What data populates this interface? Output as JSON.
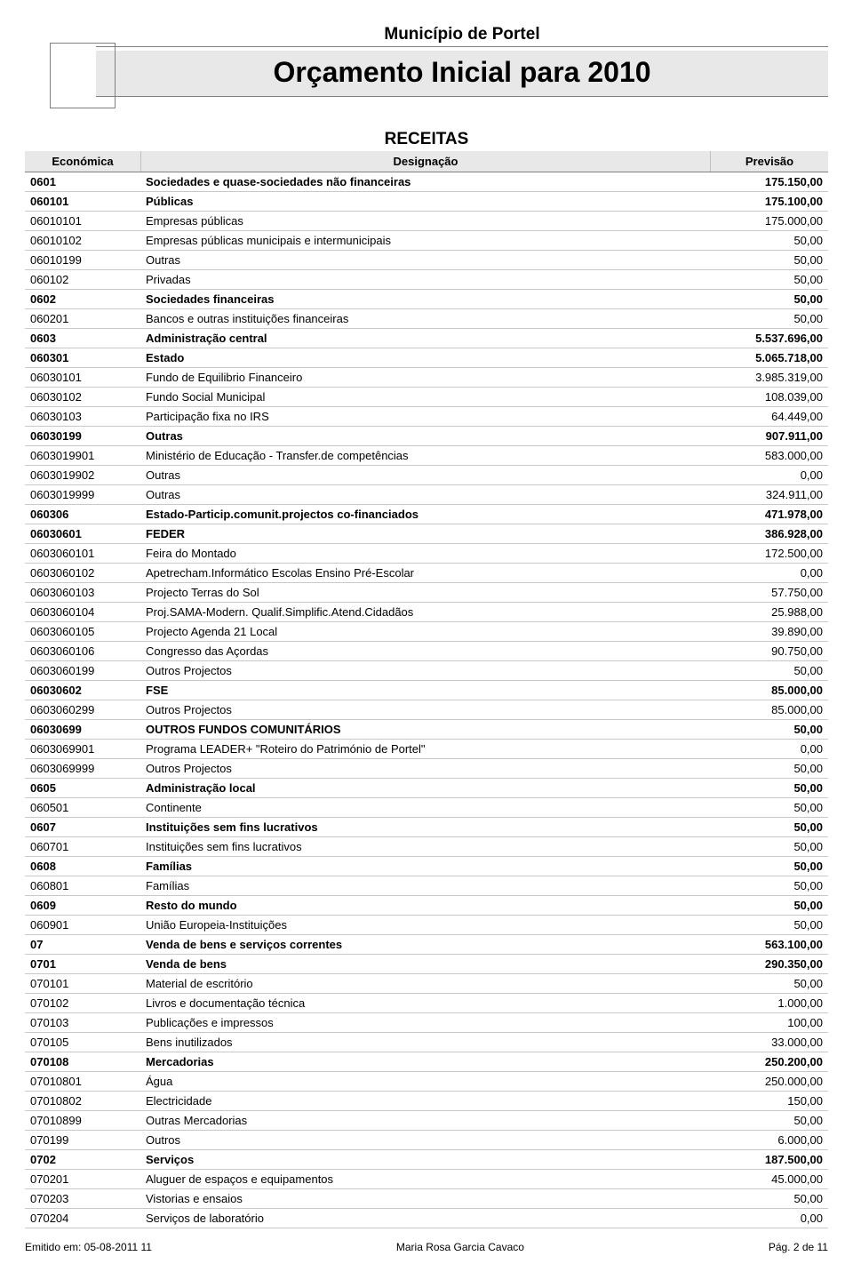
{
  "header": {
    "municipality": "Município de Portel",
    "title": "Orçamento Inicial para 2010",
    "section": "RECEITAS"
  },
  "columns": {
    "economica": "Económica",
    "designacao": "Designação",
    "previsao": "Previsão"
  },
  "style": {
    "header_bg": "#e8e8e8",
    "border_color": "#808080",
    "row_border_color": "#c8c8c8",
    "text_color": "#000000",
    "title_fontsize": 32,
    "section_fontsize": 19,
    "body_fontsize": 13
  },
  "footer": {
    "left": "Emitido em: 05-08-2011 11",
    "center": "Maria Rosa Garcia Cavaco",
    "right": "Pág. 2 de 11"
  },
  "rows": [
    {
      "econ": "0601",
      "desig": "Sociedades e quase-sociedades não financeiras",
      "prev": "175.150,00",
      "bold": true
    },
    {
      "econ": "060101",
      "desig": "Públicas",
      "prev": "175.100,00",
      "bold": true
    },
    {
      "econ": "06010101",
      "desig": "Empresas públicas",
      "prev": "175.000,00",
      "bold": false
    },
    {
      "econ": "06010102",
      "desig": "Empresas públicas municipais e intermunicipais",
      "prev": "50,00",
      "bold": false
    },
    {
      "econ": "06010199",
      "desig": "Outras",
      "prev": "50,00",
      "bold": false
    },
    {
      "econ": "060102",
      "desig": "Privadas",
      "prev": "50,00",
      "bold": false
    },
    {
      "econ": "0602",
      "desig": "Sociedades financeiras",
      "prev": "50,00",
      "bold": true
    },
    {
      "econ": "060201",
      "desig": "Bancos e outras instituições financeiras",
      "prev": "50,00",
      "bold": false
    },
    {
      "econ": "0603",
      "desig": "Administração central",
      "prev": "5.537.696,00",
      "bold": true
    },
    {
      "econ": "060301",
      "desig": "Estado",
      "prev": "5.065.718,00",
      "bold": true
    },
    {
      "econ": "06030101",
      "desig": "Fundo de Equilibrio Financeiro",
      "prev": "3.985.319,00",
      "bold": false
    },
    {
      "econ": "06030102",
      "desig": "Fundo Social Municipal",
      "prev": "108.039,00",
      "bold": false
    },
    {
      "econ": "06030103",
      "desig": "Participação fixa no IRS",
      "prev": "64.449,00",
      "bold": false
    },
    {
      "econ": "06030199",
      "desig": "Outras",
      "prev": "907.911,00",
      "bold": true
    },
    {
      "econ": "0603019901",
      "desig": "Ministério de Educação - Transfer.de competências",
      "prev": "583.000,00",
      "bold": false
    },
    {
      "econ": "0603019902",
      "desig": "Outras",
      "prev": "0,00",
      "bold": false
    },
    {
      "econ": "0603019999",
      "desig": "Outras",
      "prev": "324.911,00",
      "bold": false
    },
    {
      "econ": "060306",
      "desig": "Estado-Particip.comunit.projectos co-financiados",
      "prev": "471.978,00",
      "bold": true
    },
    {
      "econ": "06030601",
      "desig": "FEDER",
      "prev": "386.928,00",
      "bold": true
    },
    {
      "econ": "0603060101",
      "desig": "Feira do Montado",
      "prev": "172.500,00",
      "bold": false
    },
    {
      "econ": "0603060102",
      "desig": "Apetrecham.Informático Escolas Ensino Pré-Escolar",
      "prev": "0,00",
      "bold": false
    },
    {
      "econ": "0603060103",
      "desig": "Projecto Terras do Sol",
      "prev": "57.750,00",
      "bold": false
    },
    {
      "econ": "0603060104",
      "desig": "Proj.SAMA-Modern. Qualif.Simplific.Atend.Cidadãos",
      "prev": "25.988,00",
      "bold": false
    },
    {
      "econ": "0603060105",
      "desig": "Projecto Agenda 21 Local",
      "prev": "39.890,00",
      "bold": false
    },
    {
      "econ": "0603060106",
      "desig": "Congresso das Açordas",
      "prev": "90.750,00",
      "bold": false
    },
    {
      "econ": "0603060199",
      "desig": "Outros Projectos",
      "prev": "50,00",
      "bold": false
    },
    {
      "econ": "06030602",
      "desig": "FSE",
      "prev": "85.000,00",
      "bold": true
    },
    {
      "econ": "0603060299",
      "desig": "Outros Projectos",
      "prev": "85.000,00",
      "bold": false
    },
    {
      "econ": "06030699",
      "desig": "OUTROS FUNDOS COMUNITÁRIOS",
      "prev": "50,00",
      "bold": true
    },
    {
      "econ": "0603069901",
      "desig": "Programa LEADER+ \"Roteiro do Património de Portel\"",
      "prev": "0,00",
      "bold": false
    },
    {
      "econ": "0603069999",
      "desig": "Outros Projectos",
      "prev": "50,00",
      "bold": false
    },
    {
      "econ": "0605",
      "desig": "Administração local",
      "prev": "50,00",
      "bold": true
    },
    {
      "econ": "060501",
      "desig": "Continente",
      "prev": "50,00",
      "bold": false
    },
    {
      "econ": "0607",
      "desig": "Instituições sem fins lucrativos",
      "prev": "50,00",
      "bold": true
    },
    {
      "econ": "060701",
      "desig": "Instituições sem fins lucrativos",
      "prev": "50,00",
      "bold": false
    },
    {
      "econ": "0608",
      "desig": "Famílias",
      "prev": "50,00",
      "bold": true
    },
    {
      "econ": "060801",
      "desig": "Famílias",
      "prev": "50,00",
      "bold": false
    },
    {
      "econ": "0609",
      "desig": "Resto do mundo",
      "prev": "50,00",
      "bold": true
    },
    {
      "econ": "060901",
      "desig": "União Europeia-Instituições",
      "prev": "50,00",
      "bold": false
    },
    {
      "econ": "07",
      "desig": "Venda de bens e serviços correntes",
      "prev": "563.100,00",
      "bold": true
    },
    {
      "econ": "0701",
      "desig": "Venda de bens",
      "prev": "290.350,00",
      "bold": true
    },
    {
      "econ": "070101",
      "desig": "Material de escritório",
      "prev": "50,00",
      "bold": false
    },
    {
      "econ": "070102",
      "desig": "Livros e documentação técnica",
      "prev": "1.000,00",
      "bold": false
    },
    {
      "econ": "070103",
      "desig": "Publicações e impressos",
      "prev": "100,00",
      "bold": false
    },
    {
      "econ": "070105",
      "desig": "Bens inutilizados",
      "prev": "33.000,00",
      "bold": false
    },
    {
      "econ": "070108",
      "desig": "Mercadorias",
      "prev": "250.200,00",
      "bold": true
    },
    {
      "econ": "07010801",
      "desig": "Água",
      "prev": "250.000,00",
      "bold": false
    },
    {
      "econ": "07010802",
      "desig": "Electricidade",
      "prev": "150,00",
      "bold": false
    },
    {
      "econ": "07010899",
      "desig": "Outras Mercadorias",
      "prev": "50,00",
      "bold": false
    },
    {
      "econ": "070199",
      "desig": "Outros",
      "prev": "6.000,00",
      "bold": false
    },
    {
      "econ": "0702",
      "desig": "Serviços",
      "prev": "187.500,00",
      "bold": true
    },
    {
      "econ": "070201",
      "desig": "Aluguer de espaços e equipamentos",
      "prev": "45.000,00",
      "bold": false
    },
    {
      "econ": "070203",
      "desig": "Vistorias e ensaios",
      "prev": "50,00",
      "bold": false
    },
    {
      "econ": "070204",
      "desig": "Serviços de laboratório",
      "prev": "0,00",
      "bold": false
    }
  ]
}
